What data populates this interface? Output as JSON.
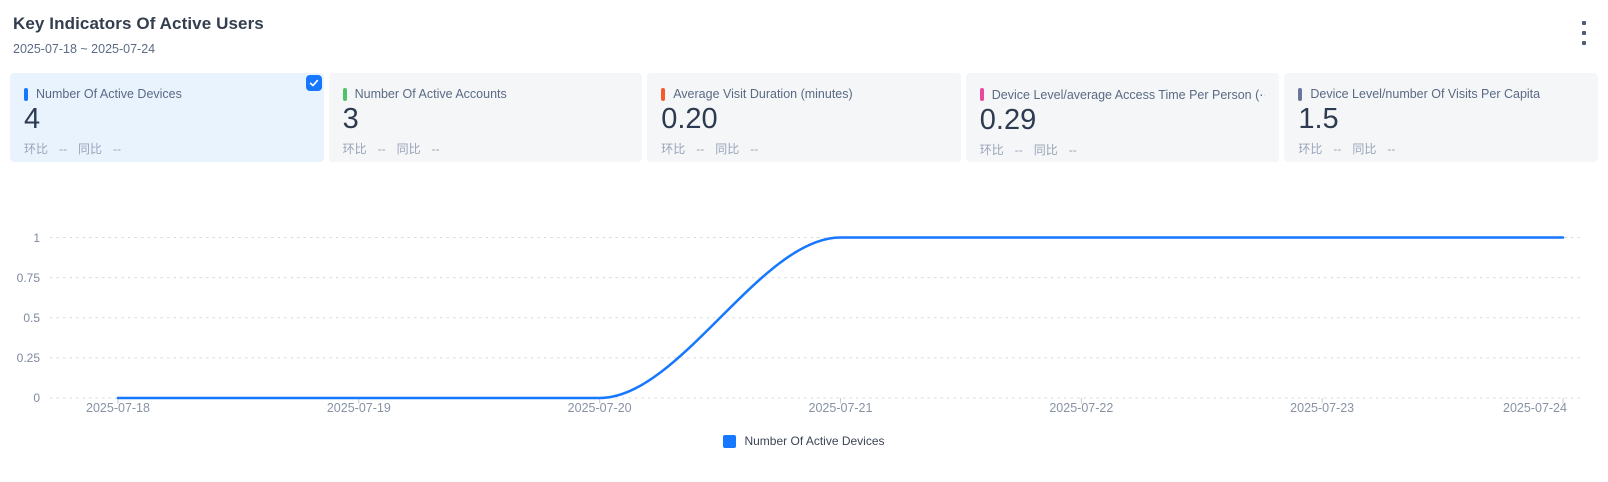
{
  "header": {
    "title": "Key Indicators Of Active Users",
    "date_range": "2025-07-18 ~ 2025-07-24",
    "menu_icon": "kebab-vertical-icon"
  },
  "cards": [
    {
      "label": "Number Of Active Devices",
      "value": "4",
      "accent_color": "#1677ff",
      "selected": true,
      "checked_icon": "check-icon",
      "mom_label": "环比",
      "mom_value": "--",
      "yoy_label": "同比",
      "yoy_value": "--"
    },
    {
      "label": "Number Of Active Accounts",
      "value": "3",
      "accent_color": "#4fc36a",
      "selected": false,
      "mom_label": "环比",
      "mom_value": "--",
      "yoy_label": "同比",
      "yoy_value": "--"
    },
    {
      "label": "Average Visit Duration (minutes)",
      "value": "0.20",
      "accent_color": "#f65a2b",
      "selected": false,
      "mom_label": "环比",
      "mom_value": "--",
      "yoy_label": "同比",
      "yoy_value": "--"
    },
    {
      "label": "Device Level/average Access Time Per Person (⋯",
      "value": "0.29",
      "accent_color": "#e8489d",
      "selected": false,
      "mom_label": "环比",
      "mom_value": "--",
      "yoy_label": "同比",
      "yoy_value": "--"
    },
    {
      "label": "Device Level/number Of Visits Per Capita",
      "value": "1.5",
      "accent_color": "#68779b",
      "selected": false,
      "mom_label": "环比",
      "mom_value": "--",
      "yoy_label": "同比",
      "yoy_value": "--"
    }
  ],
  "chart_data": {
    "type": "line",
    "title": "",
    "x": [
      "2025-07-18",
      "2025-07-19",
      "2025-07-20",
      "2025-07-21",
      "2025-07-22",
      "2025-07-23",
      "2025-07-24"
    ],
    "series": [
      {
        "name": "Number Of Active Devices",
        "color": "#1677ff",
        "smooth": true,
        "values": [
          0,
          0,
          0,
          1,
          1,
          1,
          1
        ]
      }
    ],
    "xlabel": "",
    "ylabel": "",
    "ylim": [
      0,
      1
    ],
    "yticks": [
      0,
      0.25,
      0.5,
      0.75,
      1
    ],
    "grid": "dashed-horizontal",
    "legend_position": "bottom-center"
  },
  "colors": {
    "accent_blue": "#1677ff",
    "card_bg": "#f5f6f7",
    "card_bg_selected": "#e9f3fe",
    "grid_line": "#d7dae1",
    "axis_tick": "#c5cad3"
  }
}
